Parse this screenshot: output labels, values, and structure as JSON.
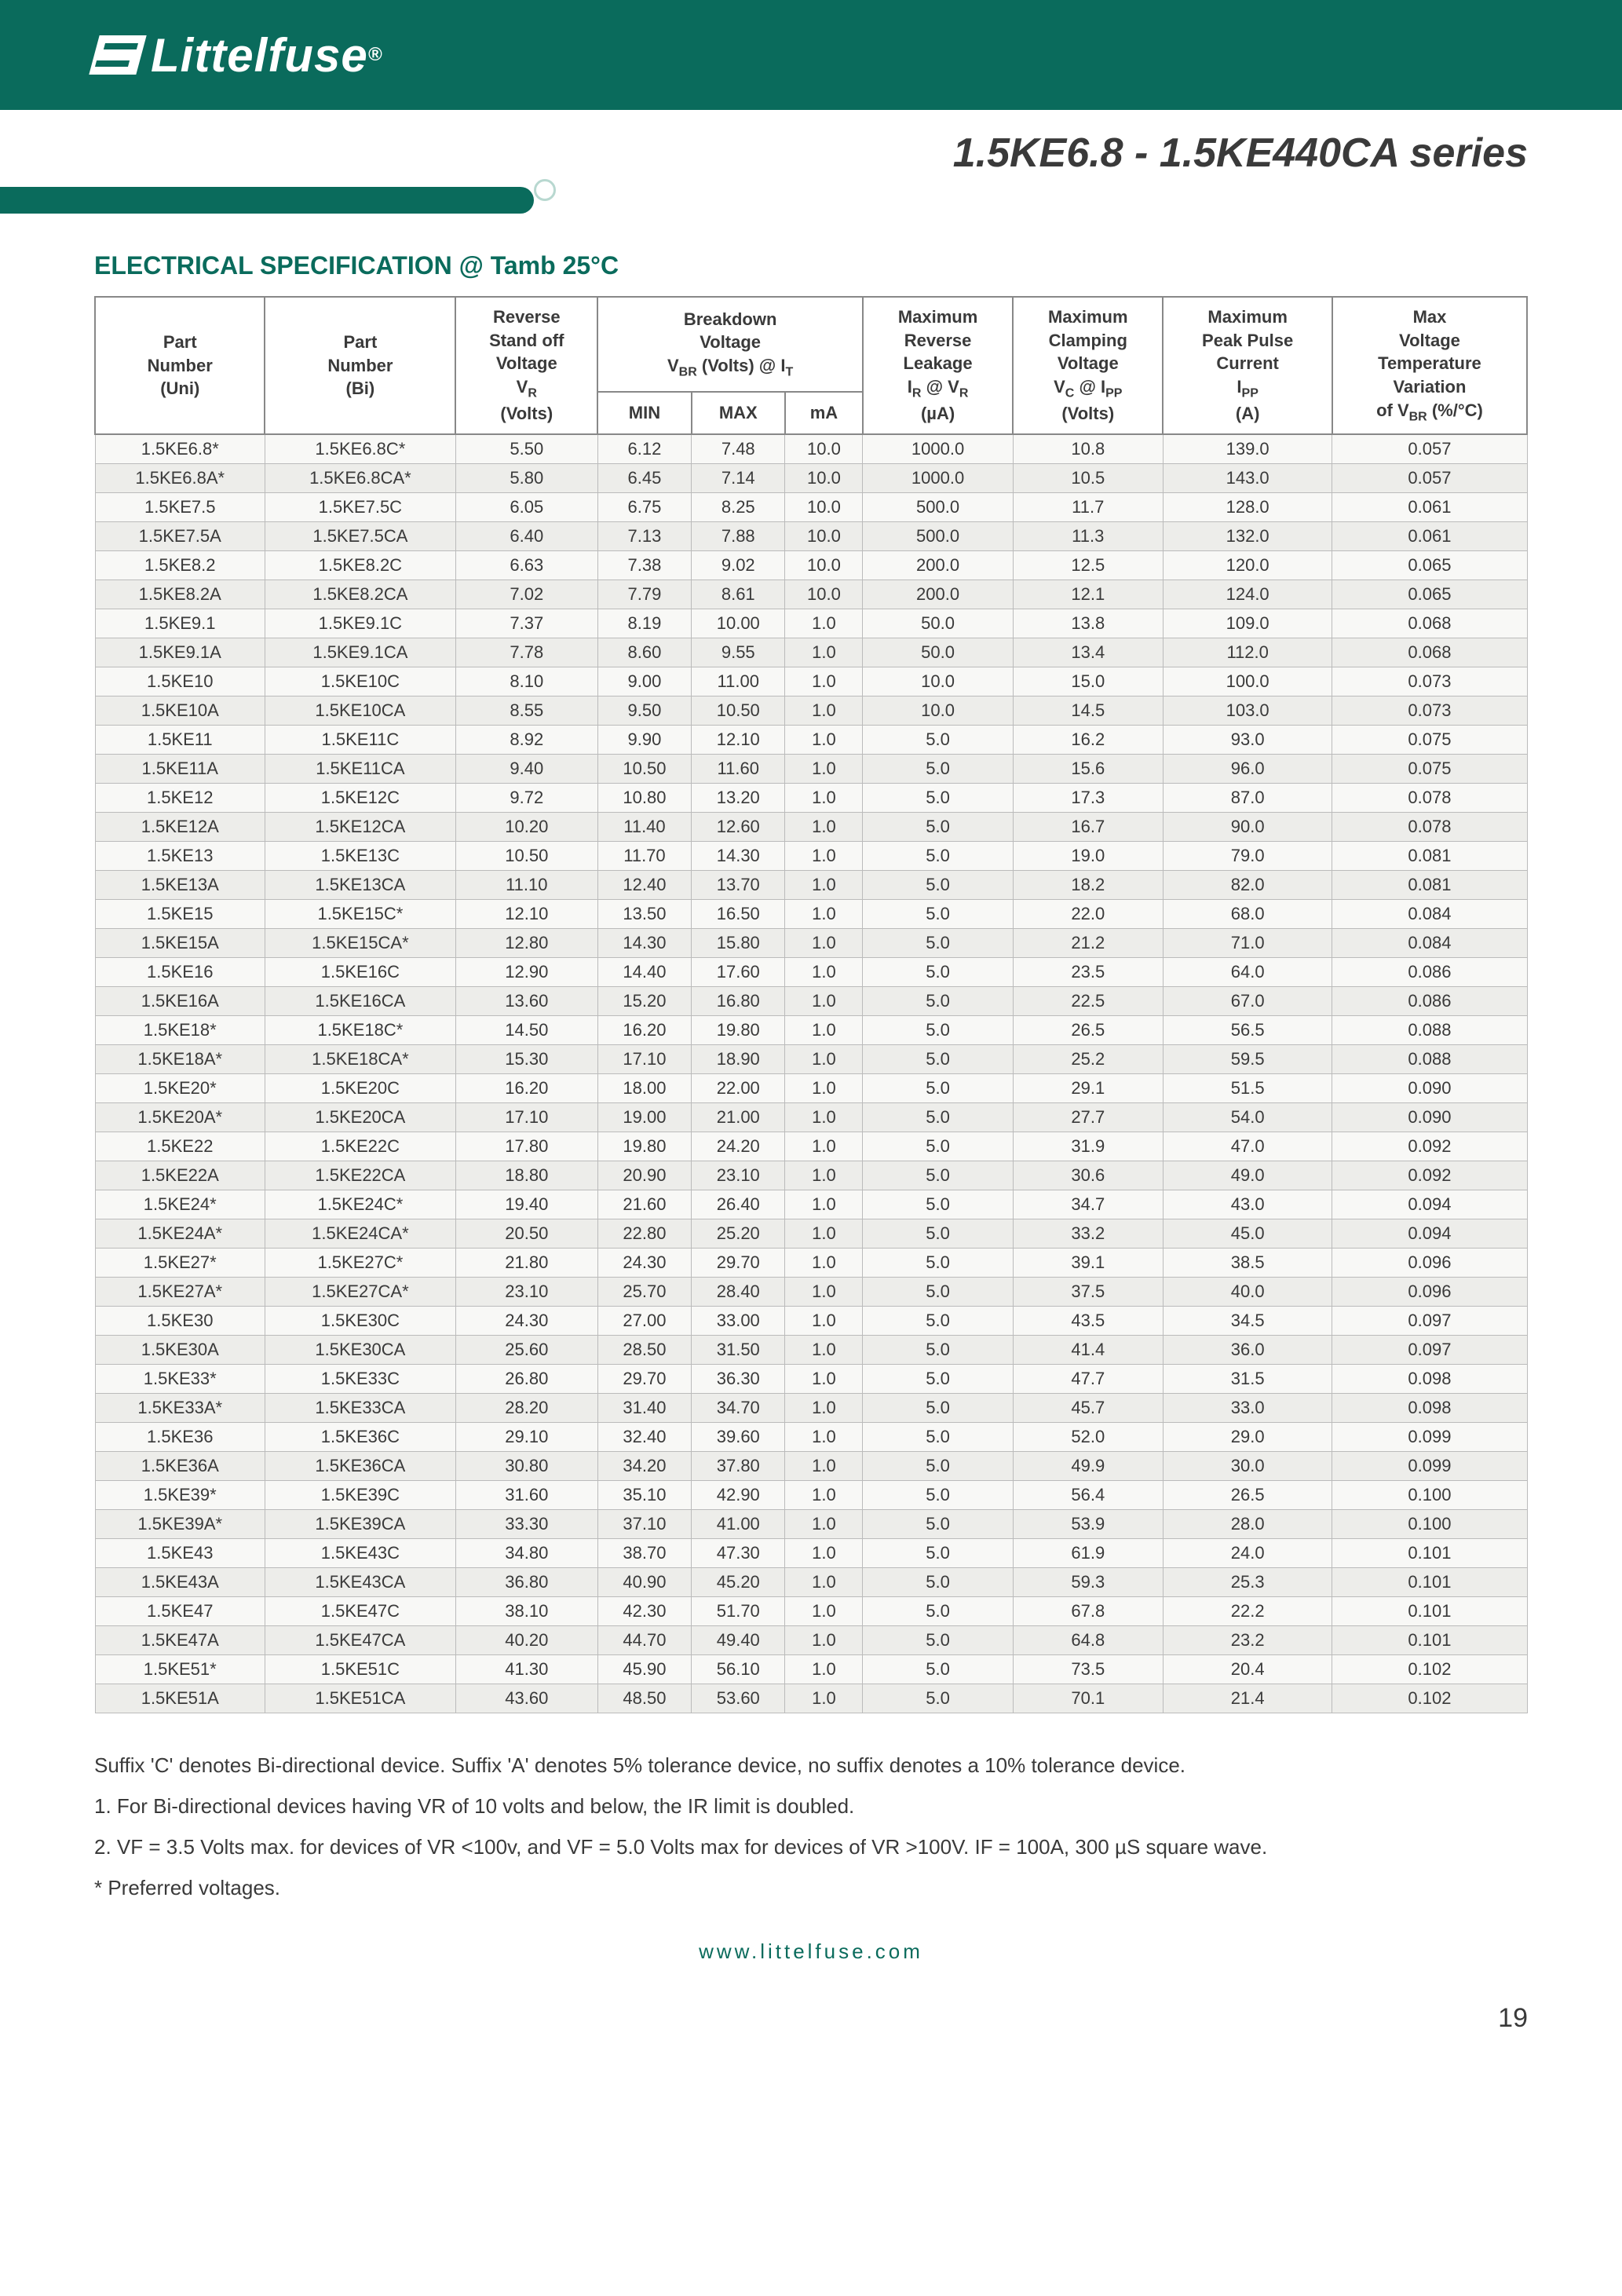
{
  "brand": "Littelfuse",
  "series_title": "1.5KE6.8 - 1.5KE440CA series",
  "section_title": "ELECTRICAL SPECIFICATION @ Tamb 25°C",
  "footer_url": "www.littelfuse.com",
  "page_number": "19",
  "headers": {
    "uni": "Part\nNumber\n(Uni)",
    "bi": "Part\nNumber\n(Bi)",
    "vr": "Reverse\nStand off\nVoltage\nVR\n(Volts)",
    "vbr_group": "Breakdown\nVoltage\nVBR (Volts) @ IT",
    "vbr_min": "MIN",
    "vbr_max": "MAX",
    "vbr_ma": "mA",
    "ir": "Maximum\nReverse\nLeakage\nIR @ VR\n(µA)",
    "vc": "Maximum\nClamping\nVoltage\nVC @ IPP\n(Volts)",
    "ipp": "Maximum\nPeak Pulse\nCurrent\nIPP\n(A)",
    "tvar": "Max\nVoltage\nTemperature\nVariation\nof VBR (%/°C)"
  },
  "rows": [
    [
      "1.5KE6.8*",
      "1.5KE6.8C*",
      "5.50",
      "6.12",
      "7.48",
      "10.0",
      "1000.0",
      "10.8",
      "139.0",
      "0.057"
    ],
    [
      "1.5KE6.8A*",
      "1.5KE6.8CA*",
      "5.80",
      "6.45",
      "7.14",
      "10.0",
      "1000.0",
      "10.5",
      "143.0",
      "0.057"
    ],
    [
      "1.5KE7.5",
      "1.5KE7.5C",
      "6.05",
      "6.75",
      "8.25",
      "10.0",
      "500.0",
      "11.7",
      "128.0",
      "0.061"
    ],
    [
      "1.5KE7.5A",
      "1.5KE7.5CA",
      "6.40",
      "7.13",
      "7.88",
      "10.0",
      "500.0",
      "11.3",
      "132.0",
      "0.061"
    ],
    [
      "1.5KE8.2",
      "1.5KE8.2C",
      "6.63",
      "7.38",
      "9.02",
      "10.0",
      "200.0",
      "12.5",
      "120.0",
      "0.065"
    ],
    [
      "1.5KE8.2A",
      "1.5KE8.2CA",
      "7.02",
      "7.79",
      "8.61",
      "10.0",
      "200.0",
      "12.1",
      "124.0",
      "0.065"
    ],
    [
      "1.5KE9.1",
      "1.5KE9.1C",
      "7.37",
      "8.19",
      "10.00",
      "1.0",
      "50.0",
      "13.8",
      "109.0",
      "0.068"
    ],
    [
      "1.5KE9.1A",
      "1.5KE9.1CA",
      "7.78",
      "8.60",
      "9.55",
      "1.0",
      "50.0",
      "13.4",
      "112.0",
      "0.068"
    ],
    [
      "1.5KE10",
      "1.5KE10C",
      "8.10",
      "9.00",
      "11.00",
      "1.0",
      "10.0",
      "15.0",
      "100.0",
      "0.073"
    ],
    [
      "1.5KE10A",
      "1.5KE10CA",
      "8.55",
      "9.50",
      "10.50",
      "1.0",
      "10.0",
      "14.5",
      "103.0",
      "0.073"
    ],
    [
      "1.5KE11",
      "1.5KE11C",
      "8.92",
      "9.90",
      "12.10",
      "1.0",
      "5.0",
      "16.2",
      "93.0",
      "0.075"
    ],
    [
      "1.5KE11A",
      "1.5KE11CA",
      "9.40",
      "10.50",
      "11.60",
      "1.0",
      "5.0",
      "15.6",
      "96.0",
      "0.075"
    ],
    [
      "1.5KE12",
      "1.5KE12C",
      "9.72",
      "10.80",
      "13.20",
      "1.0",
      "5.0",
      "17.3",
      "87.0",
      "0.078"
    ],
    [
      "1.5KE12A",
      "1.5KE12CA",
      "10.20",
      "11.40",
      "12.60",
      "1.0",
      "5.0",
      "16.7",
      "90.0",
      "0.078"
    ],
    [
      "1.5KE13",
      "1.5KE13C",
      "10.50",
      "11.70",
      "14.30",
      "1.0",
      "5.0",
      "19.0",
      "79.0",
      "0.081"
    ],
    [
      "1.5KE13A",
      "1.5KE13CA",
      "11.10",
      "12.40",
      "13.70",
      "1.0",
      "5.0",
      "18.2",
      "82.0",
      "0.081"
    ],
    [
      "1.5KE15",
      "1.5KE15C*",
      "12.10",
      "13.50",
      "16.50",
      "1.0",
      "5.0",
      "22.0",
      "68.0",
      "0.084"
    ],
    [
      "1.5KE15A",
      "1.5KE15CA*",
      "12.80",
      "14.30",
      "15.80",
      "1.0",
      "5.0",
      "21.2",
      "71.0",
      "0.084"
    ],
    [
      "1.5KE16",
      "1.5KE16C",
      "12.90",
      "14.40",
      "17.60",
      "1.0",
      "5.0",
      "23.5",
      "64.0",
      "0.086"
    ],
    [
      "1.5KE16A",
      "1.5KE16CA",
      "13.60",
      "15.20",
      "16.80",
      "1.0",
      "5.0",
      "22.5",
      "67.0",
      "0.086"
    ],
    [
      "1.5KE18*",
      "1.5KE18C*",
      "14.50",
      "16.20",
      "19.80",
      "1.0",
      "5.0",
      "26.5",
      "56.5",
      "0.088"
    ],
    [
      "1.5KE18A*",
      "1.5KE18CA*",
      "15.30",
      "17.10",
      "18.90",
      "1.0",
      "5.0",
      "25.2",
      "59.5",
      "0.088"
    ],
    [
      "1.5KE20*",
      "1.5KE20C",
      "16.20",
      "18.00",
      "22.00",
      "1.0",
      "5.0",
      "29.1",
      "51.5",
      "0.090"
    ],
    [
      "1.5KE20A*",
      "1.5KE20CA",
      "17.10",
      "19.00",
      "21.00",
      "1.0",
      "5.0",
      "27.7",
      "54.0",
      "0.090"
    ],
    [
      "1.5KE22",
      "1.5KE22C",
      "17.80",
      "19.80",
      "24.20",
      "1.0",
      "5.0",
      "31.9",
      "47.0",
      "0.092"
    ],
    [
      "1.5KE22A",
      "1.5KE22CA",
      "18.80",
      "20.90",
      "23.10",
      "1.0",
      "5.0",
      "30.6",
      "49.0",
      "0.092"
    ],
    [
      "1.5KE24*",
      "1.5KE24C*",
      "19.40",
      "21.60",
      "26.40",
      "1.0",
      "5.0",
      "34.7",
      "43.0",
      "0.094"
    ],
    [
      "1.5KE24A*",
      "1.5KE24CA*",
      "20.50",
      "22.80",
      "25.20",
      "1.0",
      "5.0",
      "33.2",
      "45.0",
      "0.094"
    ],
    [
      "1.5KE27*",
      "1.5KE27C*",
      "21.80",
      "24.30",
      "29.70",
      "1.0",
      "5.0",
      "39.1",
      "38.5",
      "0.096"
    ],
    [
      "1.5KE27A*",
      "1.5KE27CA*",
      "23.10",
      "25.70",
      "28.40",
      "1.0",
      "5.0",
      "37.5",
      "40.0",
      "0.096"
    ],
    [
      "1.5KE30",
      "1.5KE30C",
      "24.30",
      "27.00",
      "33.00",
      "1.0",
      "5.0",
      "43.5",
      "34.5",
      "0.097"
    ],
    [
      "1.5KE30A",
      "1.5KE30CA",
      "25.60",
      "28.50",
      "31.50",
      "1.0",
      "5.0",
      "41.4",
      "36.0",
      "0.097"
    ],
    [
      "1.5KE33*",
      "1.5KE33C",
      "26.80",
      "29.70",
      "36.30",
      "1.0",
      "5.0",
      "47.7",
      "31.5",
      "0.098"
    ],
    [
      "1.5KE33A*",
      "1.5KE33CA",
      "28.20",
      "31.40",
      "34.70",
      "1.0",
      "5.0",
      "45.7",
      "33.0",
      "0.098"
    ],
    [
      "1.5KE36",
      "1.5KE36C",
      "29.10",
      "32.40",
      "39.60",
      "1.0",
      "5.0",
      "52.0",
      "29.0",
      "0.099"
    ],
    [
      "1.5KE36A",
      "1.5KE36CA",
      "30.80",
      "34.20",
      "37.80",
      "1.0",
      "5.0",
      "49.9",
      "30.0",
      "0.099"
    ],
    [
      "1.5KE39*",
      "1.5KE39C",
      "31.60",
      "35.10",
      "42.90",
      "1.0",
      "5.0",
      "56.4",
      "26.5",
      "0.100"
    ],
    [
      "1.5KE39A*",
      "1.5KE39CA",
      "33.30",
      "37.10",
      "41.00",
      "1.0",
      "5.0",
      "53.9",
      "28.0",
      "0.100"
    ],
    [
      "1.5KE43",
      "1.5KE43C",
      "34.80",
      "38.70",
      "47.30",
      "1.0",
      "5.0",
      "61.9",
      "24.0",
      "0.101"
    ],
    [
      "1.5KE43A",
      "1.5KE43CA",
      "36.80",
      "40.90",
      "45.20",
      "1.0",
      "5.0",
      "59.3",
      "25.3",
      "0.101"
    ],
    [
      "1.5KE47",
      "1.5KE47C",
      "38.10",
      "42.30",
      "51.70",
      "1.0",
      "5.0",
      "67.8",
      "22.2",
      "0.101"
    ],
    [
      "1.5KE47A",
      "1.5KE47CA",
      "40.20",
      "44.70",
      "49.40",
      "1.0",
      "5.0",
      "64.8",
      "23.2",
      "0.101"
    ],
    [
      "1.5KE51*",
      "1.5KE51C",
      "41.30",
      "45.90",
      "56.10",
      "1.0",
      "5.0",
      "73.5",
      "20.4",
      "0.102"
    ],
    [
      "1.5KE51A",
      "1.5KE51CA",
      "43.60",
      "48.50",
      "53.60",
      "1.0",
      "5.0",
      "70.1",
      "21.4",
      "0.102"
    ]
  ],
  "notes": {
    "suffix": "Suffix 'C' denotes Bi-directional device. Suffix 'A' denotes 5% tolerance device, no suffix denotes a 10% tolerance device.",
    "n1": "1.  For Bi-directional devices having VR of 10 volts and below, the IR limit is doubled.",
    "n2": "2.  VF = 3.5 Volts max. for devices of VR <100v, and VF = 5.0 Volts max for devices of VR >100V. IF = 100A, 300 µS square wave.",
    "n3": "*  Preferred voltages."
  }
}
